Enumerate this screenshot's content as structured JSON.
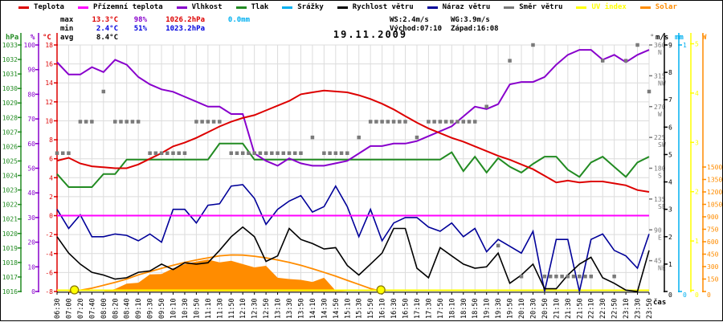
{
  "title": {
    "date": "19.11.2009"
  },
  "palette": {
    "red": "#dd0000",
    "magenta": "#ff00ff",
    "violet": "#8800cc",
    "green": "#228b22",
    "cyan": "#00b0f0",
    "black": "#000000",
    "navy": "#000099",
    "gray": "#7a7a7a",
    "yellow": "#ffff00",
    "orange": "#ff8c00",
    "blue": "#0000dd",
    "grid": "#dcdcdc"
  },
  "legend": {
    "series": [
      {
        "label": "Teplota",
        "color": "#dd0000",
        "label_color": "#000000"
      },
      {
        "label": "Přízemní teplota",
        "color": "#ff00ff",
        "label_color": "#000000"
      },
      {
        "label": "Vlhkost",
        "color": "#8800cc",
        "label_color": "#000000"
      },
      {
        "label": "Tlak",
        "color": "#228b22",
        "label_color": "#000000"
      },
      {
        "label": "Srážky",
        "color": "#00b0f0",
        "label_color": "#000000"
      },
      {
        "label": "Rychlost větru",
        "color": "#000000",
        "label_color": "#000000"
      },
      {
        "label": "Náraz větru",
        "color": "#000099",
        "label_color": "#000000"
      },
      {
        "label": "Směr větru",
        "color": "#7a7a7a",
        "label_color": "#000000"
      },
      {
        "label": "UV index",
        "color": "#ffff00",
        "label_color": "#ffff00"
      },
      {
        "label": "Solar",
        "color": "#ff8c00",
        "label_color": "#ff8c00"
      }
    ]
  },
  "stats": {
    "max": {
      "label": "max",
      "temp": "13.3°C",
      "humidity": "98%",
      "pressure": "1026.2hPa",
      "rain": "0.0mm"
    },
    "min": {
      "label": "min",
      "temp": "2.4°C",
      "humidity": "51%",
      "pressure": "1023.2hPa"
    },
    "avg": {
      "label": "avg",
      "temp": "8.4°C"
    },
    "wind": {
      "ws": "WS:2.4m/s",
      "wg": "WG:3.9m/s"
    },
    "sun": {
      "sunrise": "Východ:07:10",
      "sunset": "Západ:16:08"
    }
  },
  "axes": {
    "pressure": {
      "title": "hPa",
      "color": "#228b22",
      "ticks": [
        1033,
        1032,
        1031,
        1030,
        1029,
        1028,
        1027,
        1026,
        1025,
        1024,
        1023,
        1022,
        1021,
        1020,
        1019,
        1018,
        1017,
        1016
      ]
    },
    "humidity": {
      "title": "%",
      "color": "#8800cc",
      "ticks": [
        100,
        90,
        80,
        70,
        60,
        50,
        40,
        30,
        20,
        10,
        0
      ]
    },
    "temperature": {
      "title": "°C",
      "color": "#dd0000",
      "ticks": [
        18,
        16,
        14,
        12,
        10,
        8,
        6,
        4,
        2,
        0,
        -2,
        -4,
        -6,
        -8
      ]
    },
    "direction": {
      "title": "°",
      "color": "#7a7a7a",
      "ticks": [
        {
          "v": 360,
          "label": "360",
          "dir": "N"
        },
        {
          "v": 315,
          "label": "315",
          "dir": "NW"
        },
        {
          "v": 270,
          "label": "270",
          "dir": "W"
        },
        {
          "v": 225,
          "label": "225",
          "dir": "SW"
        },
        {
          "v": 180,
          "label": "180",
          "dir": "S"
        },
        {
          "v": 135,
          "label": "135",
          "dir": "SE"
        },
        {
          "v": 90,
          "label": "90",
          "dir": "E"
        },
        {
          "v": 45,
          "label": "45",
          "dir": "NE"
        }
      ]
    },
    "wind": {
      "title": "m/s",
      "color": "#000000",
      "ticks": [
        9,
        8,
        7,
        6,
        5,
        4,
        3,
        2,
        1,
        0
      ]
    },
    "rain": {
      "title": "mm",
      "color": "#00b0f0",
      "ticks": [
        1,
        0
      ]
    },
    "uv": {
      "title": "",
      "color": "#ffff00",
      "ticks": [
        5,
        4,
        3,
        2,
        1,
        0
      ]
    },
    "solar": {
      "title": "W",
      "color": "#ff8c00",
      "ticks": [
        1500,
        1350,
        1200,
        1050,
        900,
        750,
        600,
        450,
        300,
        150,
        0
      ]
    },
    "x_axis": {
      "title": "čas"
    }
  },
  "chart_data": {
    "type": "line",
    "x": [
      "06:30",
      "07:00",
      "07:20",
      "07:40",
      "08:00",
      "08:20",
      "08:40",
      "09:10",
      "09:30",
      "09:50",
      "10:10",
      "10:30",
      "10:50",
      "11:10",
      "11:30",
      "11:50",
      "12:10",
      "12:30",
      "12:50",
      "13:10",
      "13:30",
      "13:50",
      "14:10",
      "14:30",
      "14:50",
      "15:10",
      "15:30",
      "15:50",
      "16:10",
      "16:30",
      "16:50",
      "17:10",
      "17:30",
      "17:50",
      "18:10",
      "18:30",
      "18:50",
      "19:10",
      "19:30",
      "19:50",
      "20:10",
      "20:30",
      "20:50",
      "21:10",
      "21:30",
      "21:50",
      "22:10",
      "22:30",
      "22:50",
      "23:10",
      "23:30",
      "23:50"
    ],
    "sun_markers": {
      "sunrise_label": "07:10",
      "sunset_label": "16:08",
      "sunrise_index": 1.5,
      "sunset_index": 27.9
    },
    "series": [
      {
        "id": "solar_clear_sky",
        "name": "Solar (čistá obloha)",
        "unit": "W",
        "color": "#ff8c00",
        "scale": "solar",
        "style": "line",
        "width": 1.8,
        "trim": true,
        "values": [
          0,
          0,
          15,
          40,
          75,
          110,
          150,
          200,
          240,
          280,
          315,
          350,
          380,
          405,
          430,
          440,
          438,
          425,
          405,
          380,
          350,
          315,
          275,
          230,
          185,
          135,
          85,
          35,
          0,
          0,
          0,
          0,
          0,
          0,
          0,
          0,
          0,
          0,
          0,
          0,
          0,
          0,
          0,
          0,
          0,
          0,
          0,
          0,
          0,
          0,
          0,
          0
        ]
      },
      {
        "id": "solar",
        "name": "Solar",
        "unit": "W",
        "color": "#ff8c00",
        "scale": "solar",
        "style": "area",
        "trim": true,
        "values": [
          0,
          0,
          0,
          0,
          0,
          30,
          95,
          105,
          205,
          210,
          280,
          330,
          360,
          385,
          350,
          370,
          330,
          290,
          310,
          165,
          150,
          140,
          115,
          165,
          10,
          0,
          0,
          0,
          0,
          0,
          0,
          0,
          0,
          0,
          0,
          0,
          0,
          0,
          0,
          0,
          0,
          0,
          0,
          0,
          0,
          0,
          0,
          0,
          0,
          0,
          0,
          0
        ]
      },
      {
        "id": "rain",
        "name": "Srážky",
        "unit": "mm",
        "color": "#00b0f0",
        "scale": "rain",
        "style": "hidden",
        "values": [
          0,
          0,
          0,
          0,
          0,
          0,
          0,
          0,
          0,
          0,
          0,
          0,
          0,
          0,
          0,
          0,
          0,
          0,
          0,
          0,
          0,
          0,
          0,
          0,
          0,
          0,
          0,
          0,
          0,
          0,
          0,
          0,
          0,
          0,
          0,
          0,
          0,
          0,
          0,
          0,
          0,
          0,
          0,
          0,
          0,
          0,
          0,
          0,
          0,
          0,
          0,
          0
        ]
      },
      {
        "id": "uv_index",
        "name": "UV index",
        "unit": "",
        "color": "#ffff00",
        "scale": "uv",
        "style": "line",
        "width": 2,
        "values": [
          0,
          0,
          0,
          0,
          0,
          0,
          0,
          0,
          0,
          0,
          0,
          0,
          0,
          0,
          0,
          0,
          0,
          0,
          0,
          0,
          0,
          0,
          0,
          0,
          0,
          0,
          0,
          0,
          0,
          0,
          0,
          0,
          0,
          0,
          0,
          0,
          0,
          0,
          0,
          0,
          0,
          0,
          0,
          0,
          0,
          0,
          0,
          0,
          0,
          0,
          0,
          0
        ]
      },
      {
        "id": "wind_gust",
        "name": "Náraz větru",
        "unit": "m/s",
        "color": "#000099",
        "scale": "wind",
        "style": "line",
        "width": 1.6,
        "values": [
          3.0,
          2.3,
          2.8,
          2.0,
          2.0,
          2.1,
          2.05,
          1.85,
          2.1,
          1.8,
          3.0,
          3.0,
          2.5,
          3.15,
          3.2,
          3.85,
          3.9,
          3.4,
          2.45,
          3.0,
          3.3,
          3.5,
          2.9,
          3.1,
          3.85,
          3.1,
          2.0,
          3.0,
          1.85,
          2.5,
          2.7,
          2.7,
          2.35,
          2.2,
          2.5,
          2.0,
          2.3,
          1.45,
          1.9,
          1.65,
          1.4,
          2.2,
          0.0,
          1.9,
          1.9,
          0.0,
          1.9,
          2.1,
          1.5,
          1.3,
          0.85,
          2.1
        ]
      },
      {
        "id": "wind_speed",
        "name": "Rychlost větru",
        "unit": "m/s",
        "color": "#000000",
        "scale": "wind",
        "style": "line",
        "width": 1.6,
        "values": [
          2.0,
          1.4,
          1.0,
          0.7,
          0.6,
          0.45,
          0.5,
          0.7,
          0.75,
          1.0,
          0.8,
          1.05,
          1.0,
          1.05,
          1.5,
          2.0,
          2.35,
          2.0,
          1.1,
          1.3,
          2.3,
          1.9,
          1.75,
          1.55,
          1.6,
          0.95,
          0.6,
          1.0,
          1.4,
          2.3,
          2.3,
          0.85,
          0.5,
          1.6,
          1.3,
          1.0,
          0.85,
          0.9,
          1.4,
          0.3,
          0.6,
          1.0,
          0.1,
          0.1,
          0.6,
          1.0,
          1.25,
          0.5,
          0.3,
          0.05,
          0.0,
          1.5
        ]
      },
      {
        "id": "pressure",
        "name": "Tlak",
        "unit": "hPa",
        "color": "#228b22",
        "scale": "pressure",
        "style": "line",
        "width": 2,
        "values": [
          1024.1,
          1023.2,
          1023.2,
          1023.2,
          1024.1,
          1024.1,
          1025.1,
          1025.1,
          1025.1,
          1025.1,
          1025.1,
          1025.1,
          1025.1,
          1025.1,
          1026.2,
          1026.2,
          1026.2,
          1025.1,
          1025.1,
          1025.1,
          1025.1,
          1025.1,
          1025.1,
          1025.1,
          1025.1,
          1025.1,
          1025.1,
          1025.1,
          1025.1,
          1025.1,
          1025.1,
          1025.1,
          1025.1,
          1025.1,
          1025.6,
          1024.3,
          1025.3,
          1024.2,
          1025.2,
          1024.6,
          1024.2,
          1024.8,
          1025.3,
          1025.3,
          1024.4,
          1023.9,
          1024.9,
          1025.3,
          1024.6,
          1023.9,
          1024.9,
          1025.3
        ]
      },
      {
        "id": "humidity",
        "name": "Vlhkost",
        "unit": "%",
        "color": "#8800cc",
        "scale": "humidity",
        "style": "line",
        "width": 2,
        "values": [
          93,
          88,
          88,
          91,
          89,
          94,
          92,
          87,
          84,
          82,
          81,
          79,
          77,
          75,
          75,
          72,
          72,
          56,
          53,
          51,
          54,
          52,
          51,
          51,
          52,
          53,
          56,
          59,
          59,
          60,
          60,
          61,
          63,
          65,
          67,
          71,
          75,
          74,
          76,
          84,
          85,
          85,
          87,
          92,
          96,
          98,
          98,
          94,
          96,
          93,
          96,
          98
        ]
      },
      {
        "id": "ground_temperature",
        "name": "Přízemní teplota",
        "unit": "°C",
        "color": "#ff00ff",
        "scale": "temperature",
        "style": "line",
        "width": 2,
        "values": [
          0,
          0,
          0,
          0,
          0,
          0,
          0,
          0,
          0,
          0,
          0,
          0,
          0,
          0,
          0,
          0,
          0,
          0,
          0,
          0,
          0,
          0,
          0,
          0,
          0,
          0,
          0,
          0,
          0,
          0,
          0,
          0,
          0,
          0,
          0,
          0,
          0,
          0,
          0,
          0,
          0,
          0,
          0,
          0,
          0,
          0,
          0,
          0,
          0,
          0,
          0,
          0
        ]
      },
      {
        "id": "temperature",
        "name": "Teplota",
        "unit": "°C",
        "color": "#dd0000",
        "scale": "temperature",
        "style": "line",
        "width": 2,
        "values": [
          5.8,
          6.1,
          5.5,
          5.2,
          5.1,
          5.0,
          5.0,
          5.4,
          6.0,
          6.6,
          7.3,
          7.7,
          8.2,
          8.8,
          9.4,
          9.9,
          10.3,
          10.6,
          11.1,
          11.6,
          12.1,
          12.8,
          13.0,
          13.2,
          13.1,
          13.0,
          12.7,
          12.3,
          11.8,
          11.2,
          10.5,
          9.8,
          9.2,
          8.7,
          8.2,
          7.8,
          7.3,
          6.8,
          6.3,
          5.9,
          5.4,
          4.9,
          4.2,
          3.5,
          3.7,
          3.5,
          3.6,
          3.6,
          3.4,
          3.2,
          2.7,
          2.5
        ]
      },
      {
        "id": "wind_direction",
        "name": "Směr větru",
        "unit": "°",
        "color": "#7a7a7a",
        "scale": "direction",
        "style": "dots",
        "values": [
          202,
          202,
          248,
          248,
          292,
          248,
          248,
          248,
          202,
          202,
          202,
          202,
          248,
          248,
          248,
          202,
          202,
          202,
          202,
          202,
          202,
          202,
          225,
          202,
          202,
          202,
          225,
          248,
          248,
          248,
          248,
          225,
          248,
          248,
          248,
          248,
          248,
          270,
          67,
          337,
          22,
          360,
          22,
          22,
          22,
          22,
          22,
          337,
          22,
          337,
          360,
          292
        ]
      }
    ]
  }
}
